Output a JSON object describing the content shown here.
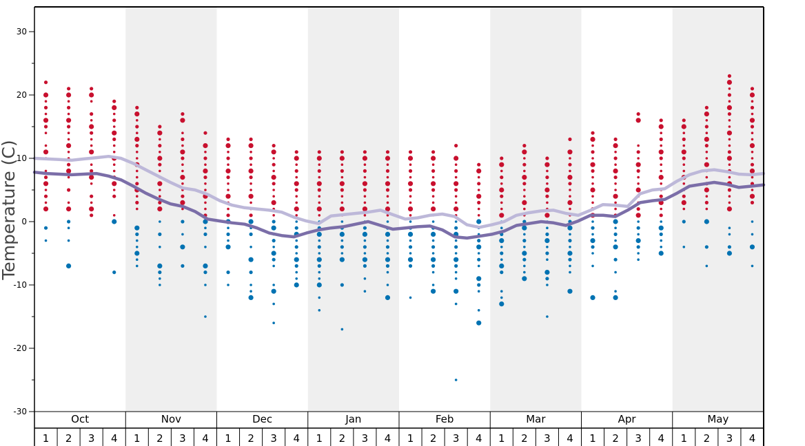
{
  "chart_data": {
    "type": "scatter",
    "title": "",
    "ylabel": "Temperature (C)",
    "xlabel": "",
    "ylim": [
      -30,
      34
    ],
    "y_ticks": [
      -30,
      -20,
      -10,
      0,
      10,
      20,
      30
    ],
    "months": [
      "Oct",
      "Nov",
      "Dec",
      "Jan",
      "Feb",
      "Mar",
      "Apr",
      "May"
    ],
    "weeks": [
      "1",
      "2",
      "3",
      "4"
    ],
    "shaded_months": [
      "Nov",
      "Jan",
      "Mar",
      "May"
    ],
    "colors": {
      "above_freezing": "#c8102e",
      "below_freezing": "#0072b2",
      "max_line": "#bdb8d9",
      "min_line": "#7b6ea8",
      "shade": "#efefef"
    },
    "series": [
      {
        "name": "",
        "kind": "line",
        "values": [
          10,
          9.9,
          9.8,
          9.7,
          9.9,
          10.1,
          10.3,
          10,
          9.2,
          8.2,
          7.2,
          6.2,
          5.3,
          5,
          4.3,
          3.3,
          2.6,
          2.2,
          2,
          1.8,
          1.5,
          0.7,
          0.1,
          -0.3,
          0.9,
          1.1,
          1.3,
          1.5,
          1.8,
          1.1,
          0.4,
          0.6,
          1,
          1.2,
          0.8,
          -0.5,
          -0.9,
          -0.5,
          0,
          1,
          1.4,
          1.7,
          1.8,
          1.3,
          1,
          1.8,
          2.7,
          2.6,
          2.4,
          4.4,
          5,
          5.2,
          6.4,
          7.4,
          8,
          8.2,
          7.9,
          7.5,
          7.4,
          7.6
        ]
      },
      {
        "name": "",
        "kind": "line",
        "values": [
          7.8,
          7.6,
          7.5,
          7.4,
          7.5,
          7.6,
          7.2,
          6.6,
          5.6,
          4.5,
          3.6,
          2.8,
          2.4,
          1.6,
          0.4,
          0.1,
          -0.2,
          -0.4,
          -1,
          -1.8,
          -2.2,
          -2.4,
          -1.8,
          -1.3,
          -1,
          -0.8,
          -0.4,
          0,
          -0.6,
          -1.2,
          -1,
          -0.8,
          -0.7,
          -1.3,
          -2.4,
          -2.6,
          -2.3,
          -2,
          -1.5,
          -0.6,
          -0.3,
          0,
          -0.2,
          -0.6,
          0.1,
          1,
          1,
          0.8,
          1.8,
          3,
          3.3,
          3.5,
          4.5,
          5.6,
          5.9,
          6.2,
          5.9,
          5.4,
          5.6,
          5.8
        ]
      }
    ],
    "weekly_points": [
      {
        "month": "Oct",
        "week": 1,
        "values": [
          22,
          20,
          19,
          18,
          17,
          16,
          15,
          14,
          12,
          11,
          10,
          8,
          7,
          6,
          5,
          4,
          3,
          2,
          -1,
          -3
        ]
      },
      {
        "month": "Oct",
        "week": 2,
        "values": [
          21,
          20,
          19,
          18,
          17,
          16,
          15,
          14,
          13,
          12,
          11,
          10,
          9,
          8,
          7,
          5,
          3,
          2,
          0,
          -1,
          -3,
          -7
        ]
      },
      {
        "month": "Oct",
        "week": 3,
        "values": [
          21,
          20,
          19,
          17,
          16,
          15,
          14,
          13,
          12,
          11,
          10,
          9,
          8,
          7,
          6,
          4,
          3,
          2,
          1
        ]
      },
      {
        "month": "Oct",
        "week": 4,
        "values": [
          19,
          18,
          17,
          16,
          15,
          14,
          13,
          12,
          11,
          10,
          9,
          8,
          7,
          6,
          5,
          4,
          1,
          0,
          -8
        ]
      },
      {
        "month": "Nov",
        "week": 1,
        "values": [
          18,
          17,
          16,
          15,
          14,
          13,
          12,
          11,
          10,
          9,
          8,
          7,
          6,
          5,
          4,
          3,
          2,
          -1,
          -2,
          -3,
          -4,
          -5,
          -6,
          -7
        ]
      },
      {
        "month": "Nov",
        "week": 2,
        "values": [
          15,
          14,
          13,
          12,
          11,
          10,
          9,
          8,
          7,
          6,
          5,
          4,
          3,
          2,
          0,
          -2,
          -4,
          -7,
          -8,
          -9,
          -10
        ]
      },
      {
        "month": "Nov",
        "week": 3,
        "values": [
          17,
          16,
          14,
          13,
          12,
          11,
          10,
          9,
          8,
          7,
          6,
          5,
          4,
          3,
          2,
          0,
          -2,
          -4,
          -7
        ]
      },
      {
        "month": "Nov",
        "week": 4,
        "values": [
          14,
          12,
          11,
          10,
          9,
          8,
          7,
          6,
          5,
          4,
          3,
          2,
          1,
          0,
          -1,
          -2,
          -4,
          -7,
          -8,
          -10,
          -15
        ]
      },
      {
        "month": "Dec",
        "week": 1,
        "values": [
          13,
          12,
          11,
          10,
          9,
          8,
          7,
          6,
          5,
          4,
          3,
          2,
          1,
          0,
          -1,
          -2,
          -3,
          -4,
          -8,
          -10
        ]
      },
      {
        "month": "Dec",
        "week": 2,
        "values": [
          13,
          12,
          11,
          10,
          9,
          8,
          7,
          6,
          5,
          4,
          3,
          2,
          1,
          0,
          -1,
          -2,
          -4,
          -6,
          -8,
          -10,
          -11,
          -12
        ]
      },
      {
        "month": "Dec",
        "week": 3,
        "values": [
          12,
          11,
          10,
          9,
          8,
          7,
          6,
          5,
          4,
          3,
          2,
          1,
          0,
          -1,
          -2,
          -3,
          -4,
          -5,
          -6,
          -7,
          -10,
          -11,
          -13,
          -16
        ]
      },
      {
        "month": "Dec",
        "week": 4,
        "values": [
          11,
          10,
          9,
          8,
          7,
          6,
          5,
          4,
          3,
          2,
          1,
          0,
          -1,
          -2,
          -3,
          -4,
          -5,
          -6,
          -7,
          -8,
          -9,
          -10
        ]
      },
      {
        "month": "Jan",
        "week": 1,
        "values": [
          11,
          10,
          9,
          8,
          7,
          6,
          5,
          4,
          3,
          2,
          1,
          0,
          -1,
          -2,
          -3,
          -4,
          -5,
          -6,
          -7,
          -8,
          -9,
          -10,
          -12,
          -14
        ]
      },
      {
        "month": "Jan",
        "week": 2,
        "values": [
          11,
          10,
          9,
          8,
          7,
          6,
          5,
          4,
          3,
          2,
          1,
          0,
          -1,
          -2,
          -3,
          -4,
          -5,
          -6,
          -10,
          -17
        ]
      },
      {
        "month": "Jan",
        "week": 3,
        "values": [
          11,
          10,
          9,
          8,
          7,
          6,
          5,
          4,
          3,
          2,
          1,
          0,
          -1,
          -2,
          -3,
          -4,
          -5,
          -6,
          -7,
          -9,
          -11
        ]
      },
      {
        "month": "Jan",
        "week": 4,
        "values": [
          11,
          10,
          9,
          8,
          7,
          6,
          5,
          4,
          3,
          2,
          1,
          0,
          -1,
          -2,
          -3,
          -4,
          -5,
          -6,
          -7,
          -8,
          -10,
          -12
        ]
      },
      {
        "month": "Feb",
        "week": 1,
        "values": [
          11,
          10,
          9,
          8,
          7,
          6,
          5,
          4,
          3,
          2,
          1,
          0,
          -1,
          -2,
          -3,
          -4,
          -5,
          -6,
          -7,
          -12
        ]
      },
      {
        "month": "Feb",
        "week": 2,
        "values": [
          11,
          10,
          9,
          8,
          7,
          6,
          5,
          4,
          3,
          2,
          1,
          0,
          -1,
          -2,
          -3,
          -4,
          -5,
          -6,
          -7,
          -8,
          -10,
          -11
        ]
      },
      {
        "month": "Feb",
        "week": 3,
        "values": [
          12,
          10,
          9,
          8,
          7,
          6,
          5,
          4,
          3,
          2,
          1,
          0,
          -1,
          -2,
          -3,
          -4,
          -5,
          -6,
          -7,
          -8,
          -9,
          -11,
          -13,
          -25
        ]
      },
      {
        "month": "Feb",
        "week": 4,
        "values": [
          9,
          8,
          7,
          6,
          5,
          4,
          3,
          2,
          1,
          0,
          -1,
          -2,
          -3,
          -4,
          -5,
          -6,
          -7,
          -9,
          -10,
          -11,
          -14,
          -16
        ]
      },
      {
        "month": "Mar",
        "week": 1,
        "values": [
          10,
          9,
          8,
          7,
          6,
          5,
          4,
          3,
          2,
          1,
          0,
          -1,
          -2,
          -3,
          -4,
          -5,
          -6,
          -7,
          -8,
          -11,
          -12,
          -13
        ]
      },
      {
        "month": "Mar",
        "week": 2,
        "values": [
          12,
          11,
          10,
          9,
          8,
          7,
          6,
          5,
          4,
          3,
          2,
          1,
          0,
          -1,
          -2,
          -3,
          -4,
          -5,
          -6,
          -7,
          -8,
          -9
        ]
      },
      {
        "month": "Mar",
        "week": 3,
        "values": [
          10,
          9,
          8,
          7,
          6,
          5,
          4,
          3,
          2,
          1,
          0,
          -1,
          -2,
          -3,
          -4,
          -5,
          -6,
          -8,
          -9,
          -10,
          -15
        ]
      },
      {
        "month": "Mar",
        "week": 4,
        "values": [
          13,
          11,
          10,
          9,
          8,
          7,
          6,
          5,
          4,
          3,
          2,
          1,
          0,
          -1,
          -2,
          -3,
          -4,
          -5,
          -6,
          -7,
          -8,
          -11
        ]
      },
      {
        "month": "Apr",
        "week": 1,
        "values": [
          14,
          13,
          12,
          11,
          10,
          9,
          8,
          7,
          6,
          5,
          4,
          3,
          2,
          1,
          0,
          -1,
          -2,
          -3,
          -4,
          -5,
          -7,
          -12
        ]
      },
      {
        "month": "Apr",
        "week": 2,
        "values": [
          13,
          12,
          11,
          10,
          9,
          8,
          7,
          6,
          5,
          4,
          3,
          2,
          1,
          0,
          -1,
          -2,
          -3,
          -4,
          -6,
          -8,
          -11,
          -12
        ]
      },
      {
        "month": "Apr",
        "week": 3,
        "values": [
          17,
          16,
          12,
          11,
          10,
          9,
          8,
          7,
          6,
          5,
          4,
          3,
          2,
          1,
          0,
          -1,
          -2,
          -3,
          -4,
          -5,
          -6
        ]
      },
      {
        "month": "Apr",
        "week": 4,
        "values": [
          16,
          15,
          14,
          13,
          12,
          11,
          10,
          9,
          8,
          7,
          6,
          5,
          4,
          3,
          2,
          1,
          0,
          -1,
          -2,
          -3,
          -4,
          -5
        ]
      },
      {
        "month": "May",
        "week": 1,
        "values": [
          16,
          15,
          14,
          13,
          12,
          11,
          10,
          9,
          8,
          7,
          6,
          5,
          4,
          3,
          2,
          0,
          -4
        ]
      },
      {
        "month": "May",
        "week": 2,
        "values": [
          18,
          17,
          16,
          15,
          14,
          13,
          12,
          11,
          10,
          9,
          8,
          7,
          6,
          5,
          4,
          3,
          2,
          0,
          -4,
          -7
        ]
      },
      {
        "month": "May",
        "week": 3,
        "values": [
          23,
          22,
          21,
          20,
          19,
          18,
          17,
          16,
          15,
          14,
          13,
          12,
          11,
          10,
          9,
          8,
          7,
          6,
          5,
          4,
          3,
          2,
          -1,
          -2,
          -4,
          -5
        ]
      },
      {
        "month": "May",
        "week": 4,
        "values": [
          21,
          20,
          19,
          18,
          17,
          16,
          15,
          14,
          13,
          12,
          11,
          10,
          9,
          8,
          7,
          6,
          5,
          4,
          3,
          0,
          -2,
          -4,
          -7
        ]
      }
    ],
    "grid": false,
    "legend": "none"
  }
}
